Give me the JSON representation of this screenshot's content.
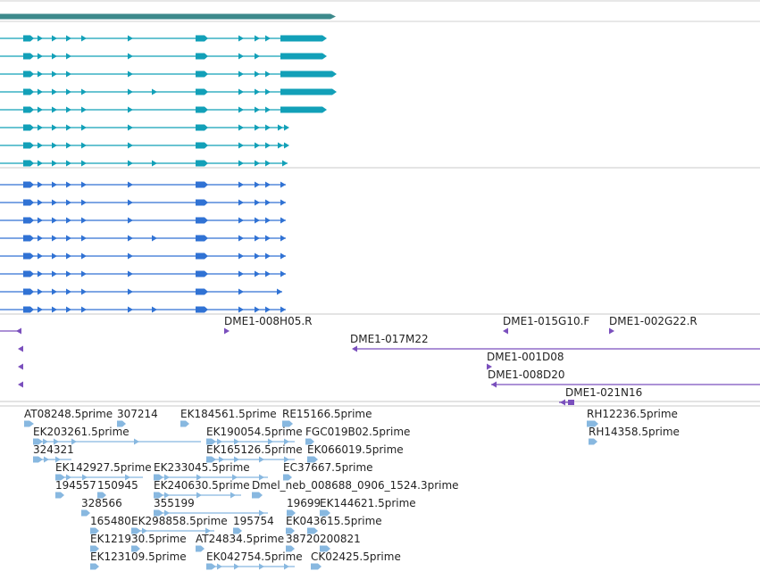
{
  "colors": {
    "gene_span": "#3d8a8c",
    "transcript_teal": "#12a0b8",
    "transcript_blue": "#3072d4",
    "clone": "#7a4fbd",
    "est": "#88b8e0",
    "divider": "#c8c8c8",
    "label": "#222222"
  },
  "tracks": {
    "gene": {
      "name": "gene-span"
    },
    "transcripts_a": {
      "count": 8
    },
    "transcripts_b": {
      "count": 8
    },
    "clones": {
      "labels": [
        "DME1-008H05.R",
        "DME1-015G10.F",
        "DME1-002G22.R",
        "DME1-017M22",
        "DME1-001D08",
        "DME1-008D20",
        "DME1-021N16"
      ]
    },
    "ests": {
      "labels": [
        "AT08248.5prime",
        "307214",
        "EK184561.5prime",
        "RE15166.5prime",
        "RH12236.5prime",
        "EK203261.5prime",
        "EK190054.5prime",
        "FGC019B02.5prime",
        "RH14358.5prime",
        "324321",
        "EK165126.5prime",
        "EK066019.5prime",
        "EK142927.5prime",
        "EK233045.5prime",
        "EC37667.5prime",
        "194557",
        "150945",
        "EK240630.5prime",
        "Dmel_neb_008688_0906_1524.3prime",
        "328566",
        "355199",
        "19699",
        "EK144621.5prime",
        "165480",
        "EK298858.5prime",
        "195754",
        "EK043615.5prime",
        "EK121930.5prime",
        "AT24834.5prime",
        "38720",
        "200821",
        "EK123109.5prime",
        "EK042754.5prime",
        "CK02425.5prime"
      ]
    }
  }
}
